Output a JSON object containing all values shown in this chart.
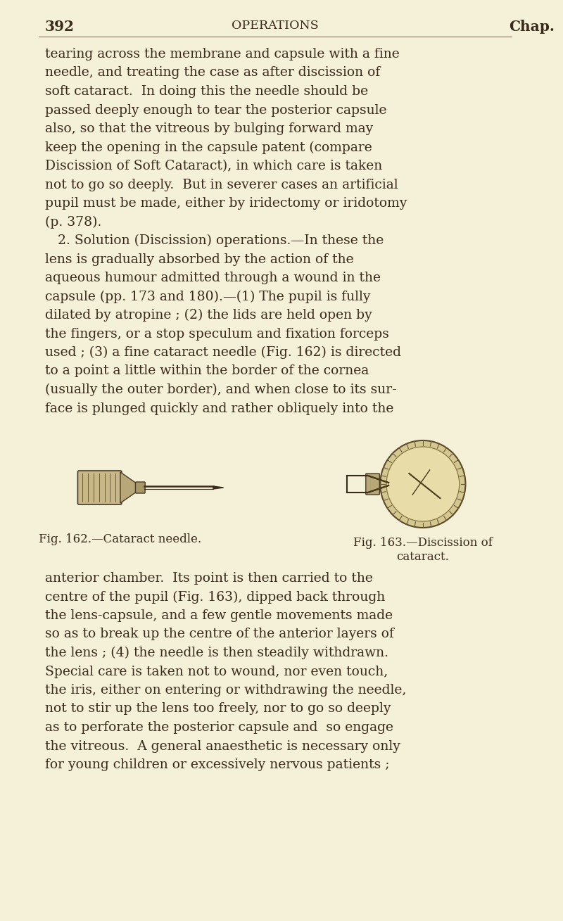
{
  "bg_color": "#f5f0d8",
  "text_color": "#3a2a1a",
  "page_number": "392",
  "header_center": "OPERATIONS",
  "header_right": "Chap.",
  "body_lines": [
    "tearing across the membrane and capsule with a fine",
    "needle, and treating the case as after discission of",
    "soft cataract.  In doing this the needle should be",
    "passed deeply enough to tear the posterior capsule",
    "also, so that the vitreous by bulging forward may",
    "keep the opening in the capsule patent (compare",
    "Discission of Soft Cataract), in which care is taken",
    "not to go so deeply.  But in severer cases an artificial",
    "pupil must be made, either by iridectomy or iridotomy",
    "(p. 378).",
    "   2. Solution (Discission) operations.—In these the",
    "lens is gradually absorbed by the action of the",
    "aqueous humour admitted through a wound in the",
    "capsule (pp. 173 and 180).—(1) The pupil is fully",
    "dilated by atropine ; (2) the lids are held open by",
    "the fingers, or a stop speculum and fixation forceps",
    "used ; (3) a fine cataract needle (Fig. 162) is directed",
    "to a point a little within the border of the cornea",
    "(usually the outer border), and when close to its sur-",
    "face is plunged quickly and rather obliquely into the"
  ],
  "fig162_caption": "Fig. 162.—Cataract needle.",
  "fig163_caption_line1": "Fig. 163.—Discission of",
  "fig163_caption_line2": "cataract.",
  "body_lines2": [
    "anterior chamber.  Its point is then carried to the",
    "centre of the pupil (Fig. 163), dipped back through",
    "the lens-capsule, and a few gentle movements made",
    "so as to break up the centre of the anterior layers of",
    "the lens ; (4) the needle is then steadily withdrawn.",
    "Special care is taken not to wound, nor even touch,",
    "the iris, either on entering or withdrawing the needle,",
    "not to stir up the lens too freely, nor to go so deeply",
    "as to perforate the posterior capsule and  so engage",
    "the vitreous.  A general anaesthetic is necessary only",
    "for young children or excessively nervous patients ;"
  ],
  "font_size_body": 13.5,
  "font_size_header": 13.5,
  "font_size_caption": 12.0
}
